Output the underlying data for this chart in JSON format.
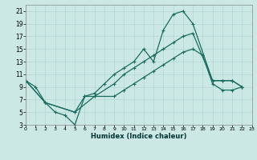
{
  "xlabel": "Humidex (Indice chaleur)",
  "background_color": "#cce8e4",
  "grid_color": "#b0d8d2",
  "line_color": "#1a6b60",
  "xlim": [
    0,
    23
  ],
  "ylim": [
    3,
    22
  ],
  "xticks": [
    0,
    1,
    2,
    3,
    4,
    5,
    6,
    7,
    8,
    9,
    10,
    11,
    12,
    13,
    14,
    15,
    16,
    17,
    18,
    19,
    20,
    21,
    22,
    23
  ],
  "yticks": [
    3,
    5,
    7,
    9,
    11,
    13,
    15,
    17,
    19,
    21
  ],
  "line1_x": [
    0,
    1,
    2,
    3,
    4,
    5,
    6,
    7,
    8,
    9,
    10,
    11,
    12,
    13,
    14,
    15,
    16,
    17,
    19,
    20,
    21,
    22
  ],
  "line1_y": [
    10,
    9,
    6.5,
    5,
    4.5,
    3,
    7.5,
    8,
    9.5,
    11,
    12,
    13,
    15,
    13,
    18,
    20.5,
    21,
    19,
    10,
    10,
    10,
    9
  ],
  "line2_x": [
    0,
    2,
    5,
    6,
    7,
    9,
    10,
    11,
    12,
    13,
    14,
    15,
    16,
    17,
    19,
    20,
    21,
    22
  ],
  "line2_y": [
    10,
    6.5,
    5,
    7.5,
    7.5,
    9.5,
    11,
    12,
    13,
    14,
    15,
    16,
    17,
    17.5,
    10,
    10,
    10,
    9
  ],
  "line3_x": [
    0,
    2,
    5,
    7,
    9,
    10,
    11,
    12,
    13,
    14,
    15,
    16,
    17,
    18,
    19,
    20,
    21,
    22
  ],
  "line3_y": [
    10,
    6.5,
    5,
    7.5,
    7.5,
    8.5,
    9.5,
    10.5,
    11.5,
    12.5,
    13.5,
    14.5,
    15,
    14,
    9.5,
    8.5,
    8.5,
    9
  ]
}
